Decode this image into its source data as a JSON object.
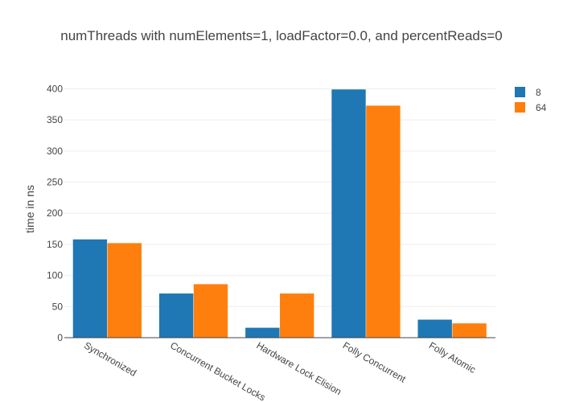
{
  "chart_data": {
    "type": "bar",
    "title": "numThreads with numElements=1, loadFactor=0.0, and percentReads=0",
    "xlabel": "",
    "ylabel": "time in ns",
    "categories": [
      "Synchronized",
      "Concurrent Bucket Locks",
      "Hardware Lock Elision",
      "Folly Concurrent",
      "Folly Atomic"
    ],
    "series": [
      {
        "name": "8",
        "color": "#1f77b4",
        "values": [
          158,
          71,
          16,
          399,
          29
        ]
      },
      {
        "name": "64",
        "color": "#ff7f0e",
        "values": [
          152,
          86,
          71,
          373,
          23
        ]
      }
    ],
    "ylim": [
      0,
      420
    ],
    "yticks": [
      0,
      50,
      100,
      150,
      200,
      250,
      300,
      350,
      400
    ],
    "grid": true,
    "legend_position": "top-right"
  }
}
